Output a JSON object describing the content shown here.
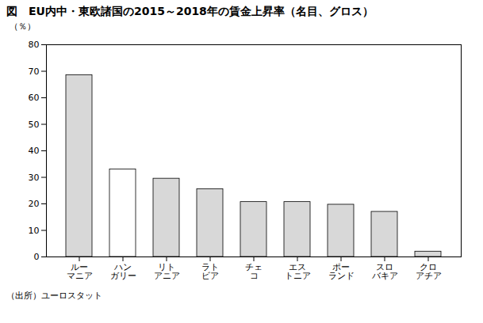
{
  "chart_data": {
    "type": "bar",
    "title": "図　EU内中・東欧諸国の2015～2018年の賃金上昇率（名目、グロス）",
    "ylabel": "（％）",
    "annotations": [
      "（出所）ユーロスタット"
    ],
    "categories": [
      "ルー\nマニア",
      "ハン\nガリー",
      "リト\nアニア",
      "ラト\nビア",
      "チェ\nコ",
      "エス\nトニア",
      "ポー\nランド",
      "スロ\nバキア",
      "クロ\nアチア"
    ],
    "values": [
      68.5,
      33.0,
      29.5,
      25.5,
      20.7,
      20.7,
      19.7,
      17.0,
      2.0
    ],
    "colors": [
      "#d8d8d8",
      "#ffffff",
      "#d8d8d8",
      "#d8d8d8",
      "#d8d8d8",
      "#d8d8d8",
      "#d8d8d8",
      "#d8d8d8",
      "#d8d8d8"
    ],
    "ylim": [
      0,
      80
    ],
    "yticks": [
      0,
      10,
      20,
      30,
      40,
      50,
      60,
      70,
      80
    ],
    "grid": false
  }
}
